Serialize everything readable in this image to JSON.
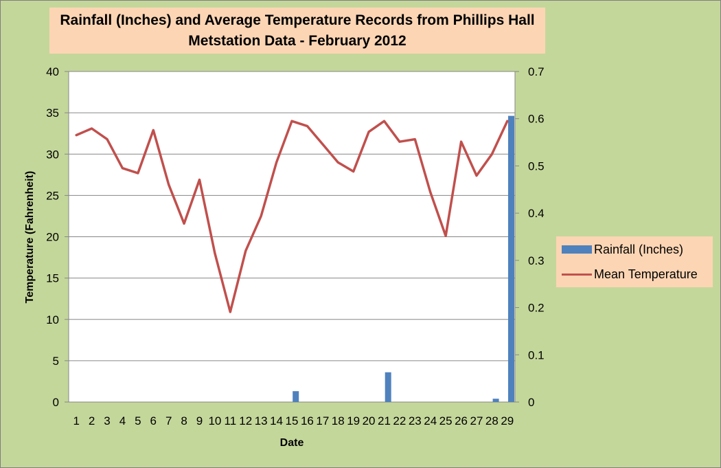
{
  "chart_data": {
    "type": "bar-line-combo",
    "title_line1": "Rainfall (Inches) and Average Temperature Records from Phillips Hall",
    "title_line2": "Metstation Data - February 2012",
    "xlabel": "Date",
    "ylabel": "Temperature (Fahrenheit)",
    "categories": [
      "1",
      "2",
      "3",
      "4",
      "5",
      "6",
      "7",
      "8",
      "9",
      "10",
      "11",
      "12",
      "13",
      "14",
      "15",
      "16",
      "17",
      "18",
      "19",
      "20",
      "21",
      "22",
      "23",
      "24",
      "25",
      "26",
      "27",
      "28",
      "29"
    ],
    "y_left": {
      "min": 0,
      "max": 40,
      "step": 5,
      "ticks": [
        "0",
        "5",
        "10",
        "15",
        "20",
        "25",
        "30",
        "35",
        "40"
      ]
    },
    "y_right": {
      "min": 0,
      "max": 0.7,
      "step": 0.1,
      "ticks": [
        "0",
        "0.1",
        "0.2",
        "0.3",
        "0.4",
        "0.5",
        "0.6",
        "0.7"
      ]
    },
    "grid": true,
    "legend_position": "right",
    "series": [
      {
        "name": "Rainfall (Inches)",
        "type": "bar",
        "axis": "right",
        "color": "#4f81bd",
        "values": [
          0,
          0,
          0,
          0,
          0,
          0,
          0,
          0,
          0,
          0,
          0,
          0,
          0,
          0,
          0.023,
          0,
          0,
          0,
          0,
          0,
          0.063,
          0,
          0,
          0,
          0,
          0,
          0,
          0.007,
          0.606
        ]
      },
      {
        "name": "Mean Temperature",
        "type": "line",
        "axis": "left",
        "color": "#c0504d",
        "values": [
          32.3,
          33.1,
          31.8,
          28.3,
          27.7,
          32.9,
          26.3,
          21.6,
          26.9,
          18.0,
          10.9,
          18.3,
          22.5,
          29.0,
          34.0,
          33.4,
          31.2,
          29.0,
          27.9,
          32.7,
          34.0,
          31.5,
          31.8,
          25.4,
          20.1,
          31.5,
          27.4,
          30.0,
          34.0
        ]
      }
    ]
  }
}
